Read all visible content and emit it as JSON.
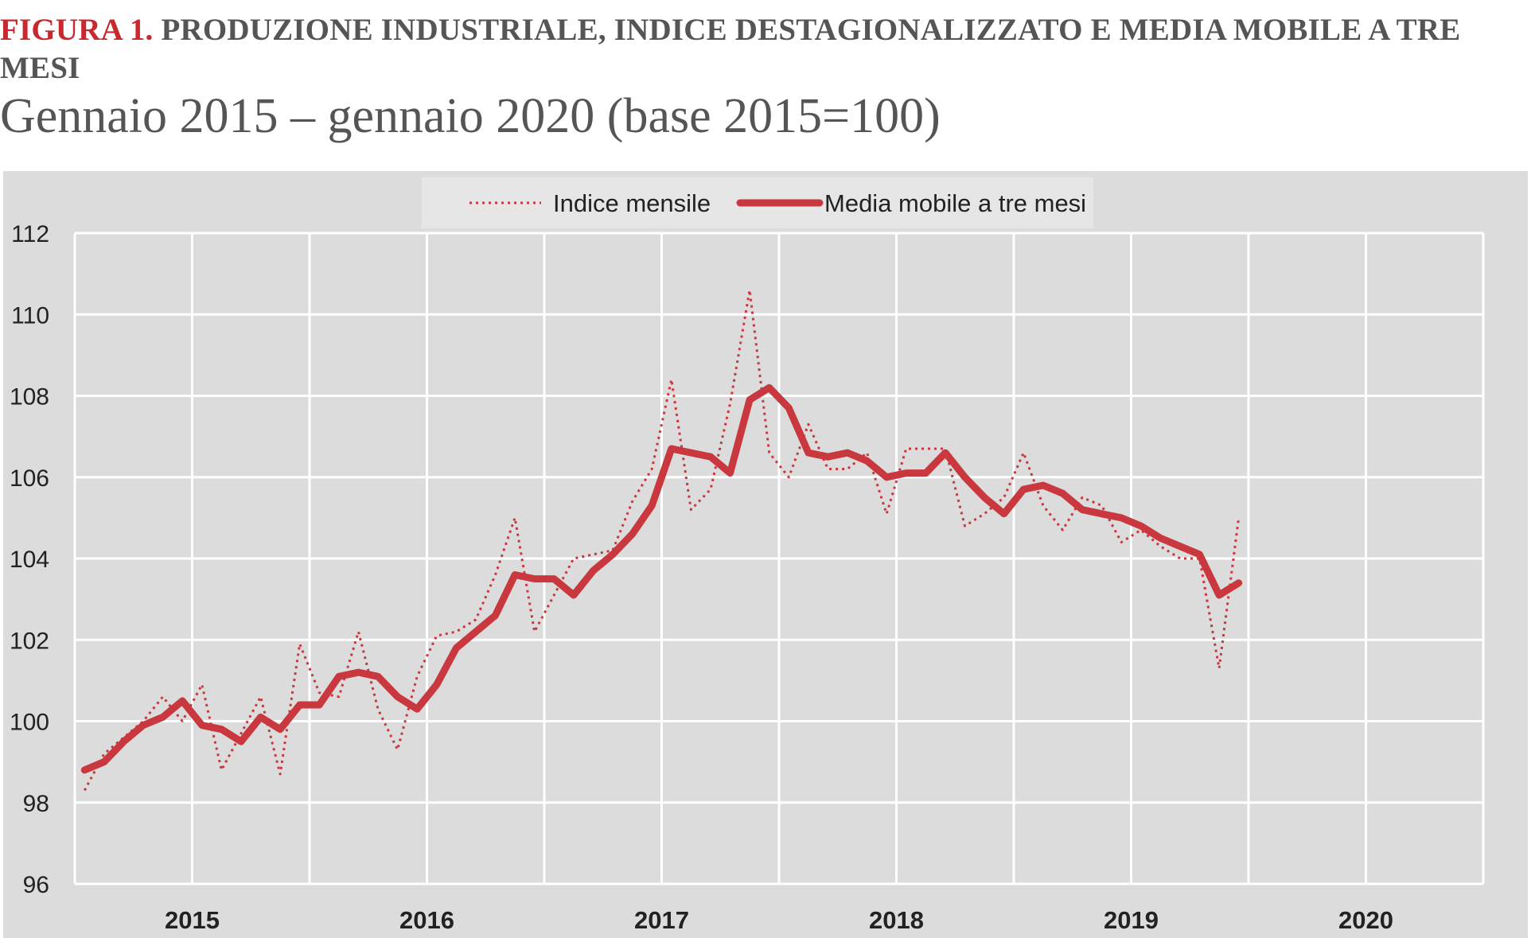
{
  "figure": {
    "label": "FIGURA 1.",
    "title": "PRODUZIONE INDUSTRIALE, INDICE DESTAGIONALIZZATO E MEDIA MOBILE A TRE MESI",
    "subtitle": "Gennaio 2015 – gennaio 2020 (base 2015=100)"
  },
  "chart_data": {
    "type": "line",
    "grid": true,
    "legend_position": "top-center",
    "ylim": [
      96,
      112
    ],
    "yticks": [
      96,
      98,
      100,
      102,
      104,
      106,
      108,
      110,
      112
    ],
    "x_tick_labels": [
      "2015",
      "2016",
      "2017",
      "2018",
      "2019",
      "2020"
    ],
    "x_range_months": "2015-01 to 2020-12",
    "colors": {
      "series": "#c8383e",
      "background": "#dcdcdc",
      "grid": "#ffffff"
    },
    "series": [
      {
        "name": "Indice mensile",
        "style": "dotted",
        "start": "2015-01",
        "values": [
          98.3,
          99.2,
          99.6,
          100.0,
          100.6,
          100.0,
          100.9,
          98.8,
          99.7,
          100.6,
          98.7,
          101.9,
          100.7,
          100.6,
          102.2,
          100.3,
          99.3,
          101.1,
          102.1,
          102.2,
          102.5,
          103.6,
          105.0,
          102.2,
          103.1,
          104.0,
          104.1,
          104.2,
          105.4,
          106.2,
          108.4,
          105.2,
          105.7,
          107.8,
          110.6,
          106.6,
          106.0,
          107.3,
          106.2,
          106.2,
          106.6,
          105.1,
          106.7,
          106.7,
          106.7,
          104.8,
          105.1,
          105.5,
          106.6,
          105.3,
          104.7,
          105.5,
          105.3,
          104.4,
          104.7,
          104.3,
          104.0,
          104.0,
          101.3,
          105.0
        ]
      },
      {
        "name": "Media mobile a tre mesi",
        "style": "solid",
        "start": "2015-01",
        "values": [
          98.8,
          99.0,
          99.5,
          99.9,
          100.1,
          100.5,
          99.9,
          99.8,
          99.5,
          100.1,
          99.8,
          100.4,
          100.4,
          101.1,
          101.2,
          101.1,
          100.6,
          100.3,
          100.9,
          101.8,
          102.2,
          102.6,
          103.6,
          103.5,
          103.5,
          103.1,
          103.7,
          104.1,
          104.6,
          105.3,
          106.7,
          106.6,
          106.5,
          106.1,
          107.9,
          108.2,
          107.7,
          106.6,
          106.5,
          106.6,
          106.4,
          106.0,
          106.1,
          106.1,
          106.6,
          106.0,
          105.5,
          105.1,
          105.7,
          105.8,
          105.6,
          105.2,
          105.1,
          105.0,
          104.8,
          104.5,
          104.3,
          104.1,
          103.1,
          103.4
        ]
      }
    ]
  }
}
